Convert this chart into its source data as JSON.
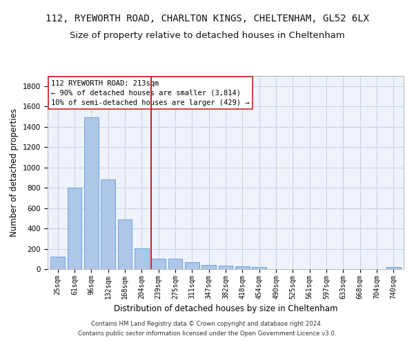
{
  "title": "112, RYEWORTH ROAD, CHARLTON KINGS, CHELTENHAM, GL52 6LX",
  "subtitle": "Size of property relative to detached houses in Cheltenham",
  "xlabel": "Distribution of detached houses by size in Cheltenham",
  "ylabel": "Number of detached properties",
  "footer1": "Contains HM Land Registry data © Crown copyright and database right 2024.",
  "footer2": "Contains public sector information licensed under the Open Government Licence v3.0.",
  "categories": [
    "25sqm",
    "61sqm",
    "96sqm",
    "132sqm",
    "168sqm",
    "204sqm",
    "239sqm",
    "275sqm",
    "311sqm",
    "347sqm",
    "382sqm",
    "418sqm",
    "454sqm",
    "490sqm",
    "525sqm",
    "561sqm",
    "597sqm",
    "633sqm",
    "668sqm",
    "704sqm",
    "740sqm"
  ],
  "values": [
    125,
    800,
    1490,
    880,
    490,
    205,
    105,
    105,
    65,
    40,
    35,
    30,
    20,
    0,
    0,
    0,
    0,
    0,
    0,
    0,
    20
  ],
  "bar_color": "#aec6e8",
  "bar_edge_color": "#5b9bd5",
  "vline_x": 5.55,
  "vline_color": "#cc2222",
  "annotation_line1": "112 RYEWORTH ROAD: 213sqm",
  "annotation_line2": "← 90% of detached houses are smaller (3,814)",
  "annotation_line3": "10% of semi-detached houses are larger (429) →",
  "annotation_box_color": "#cc2222",
  "ylim": [
    0,
    1900
  ],
  "yticks": [
    0,
    200,
    400,
    600,
    800,
    1000,
    1200,
    1400,
    1600,
    1800
  ],
  "bg_color": "#eef2fb",
  "grid_color": "#c8d0e0",
  "title_fontsize": 10,
  "subtitle_fontsize": 9.5,
  "axis_label_fontsize": 8.5,
  "tick_fontsize": 7,
  "annotation_fontsize": 7.5,
  "footer_fontsize": 6.2
}
